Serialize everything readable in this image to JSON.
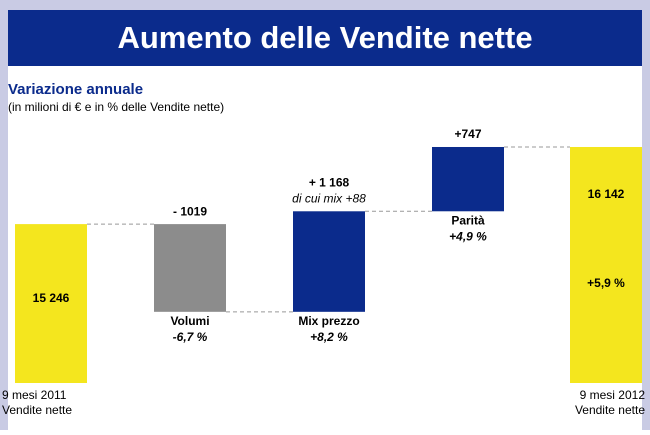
{
  "chart_data": {
    "type": "waterfall",
    "title": "Aumento delle Vendite nette",
    "subtitle": "Variazione annuale",
    "note": "(in milioni di € e in % delle Vendite nette)",
    "categories": [
      "9 mesi 2011",
      "Volumi",
      "Mix prezzo",
      "Parità",
      "9 mesi 2012"
    ],
    "category_notes": [
      "Vendite nette",
      null,
      null,
      null,
      "Vendite nette"
    ],
    "measure": [
      "total",
      "relative",
      "relative",
      "relative",
      "total"
    ],
    "values": [
      15246,
      -1019,
      1168,
      747,
      16142
    ],
    "value_labels": [
      "15 246",
      "- 1019",
      "+ 1 168",
      "+747",
      "16 142"
    ],
    "percents": [
      null,
      -6.7,
      8.2,
      4.9,
      5.9
    ],
    "percent_labels": [
      null,
      "-6,7 %",
      "+8,2 %",
      "+4,9 %",
      "+5,9 %"
    ],
    "annotations": [
      {
        "category": 2,
        "text": "di cui mix +88"
      }
    ],
    "colors": [
      "#f4e61e",
      "#8c8c8c",
      "#0b2b8c",
      "#0b2b8c",
      "#f4e61e"
    ],
    "ylim": [
      13400,
      16200
    ]
  }
}
